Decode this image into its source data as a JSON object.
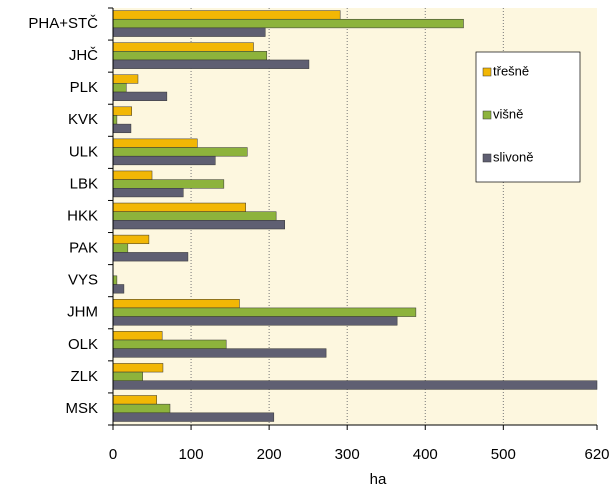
{
  "chart_data": {
    "type": "barh",
    "categories": [
      "PHA+STČ",
      "JHČ",
      "PLK",
      "KVK",
      "ULK",
      "LBK",
      "HKK",
      "PAK",
      "VYS",
      "JHM",
      "OLK",
      "ZLK",
      "MSK"
    ],
    "series": [
      {
        "name": "třešně",
        "color": "#f2b705",
        "values": [
          291,
          180,
          32,
          24,
          108,
          50,
          170,
          46,
          0,
          162,
          63,
          64,
          56
        ]
      },
      {
        "name": "višně",
        "color": "#8db33c",
        "values": [
          449,
          197,
          17,
          5,
          172,
          142,
          209,
          19,
          5,
          388,
          145,
          38,
          73
        ]
      },
      {
        "name": "slivoně",
        "color": "#5f5f72",
        "values": [
          195,
          251,
          69,
          23,
          131,
          90,
          220,
          96,
          14,
          364,
          273,
          620,
          206
        ]
      }
    ],
    "x_label": "ha",
    "xlim": [
      0,
      620
    ],
    "xticks": [
      0,
      100,
      200,
      300,
      400,
      500,
      620
    ],
    "grid": true
  }
}
